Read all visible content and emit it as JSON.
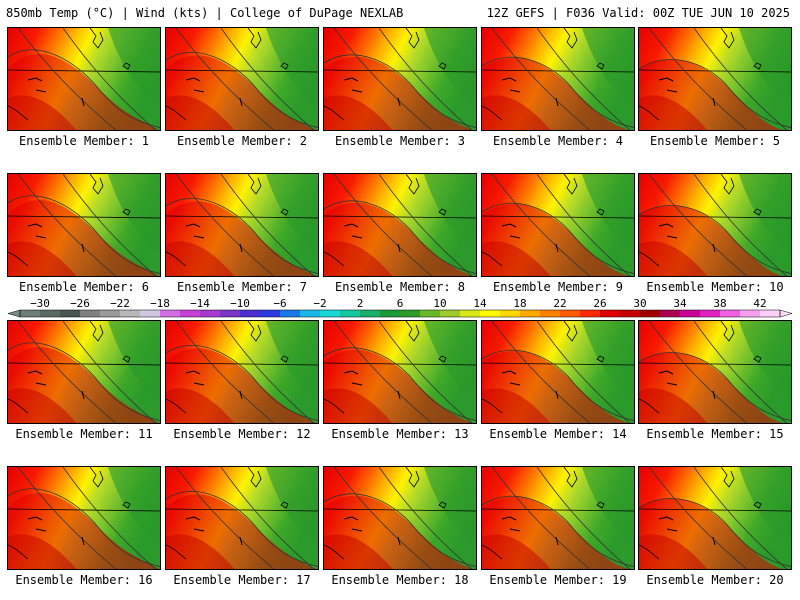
{
  "header": {
    "left": "850mb Temp (°C) | Wind (kts) | College of DuPage NEXLAB",
    "right": "12Z GEFS | F036 Valid: 00Z TUE JUN 10 2025"
  },
  "panels": [
    {
      "label": "Ensemble Member: 1"
    },
    {
      "label": "Ensemble Member: 2"
    },
    {
      "label": "Ensemble Member: 3"
    },
    {
      "label": "Ensemble Member: 4"
    },
    {
      "label": "Ensemble Member: 5"
    },
    {
      "label": "Ensemble Member: 6"
    },
    {
      "label": "Ensemble Member: 7"
    },
    {
      "label": "Ensemble Member: 8"
    },
    {
      "label": "Ensemble Member: 9"
    },
    {
      "label": "Ensemble Member: 10"
    },
    {
      "label": "Ensemble Member: 11"
    },
    {
      "label": "Ensemble Member: 12"
    },
    {
      "label": "Ensemble Member: 13"
    },
    {
      "label": "Ensemble Member: 14"
    },
    {
      "label": "Ensemble Member: 15"
    },
    {
      "label": "Ensemble Member: 16"
    },
    {
      "label": "Ensemble Member: 17"
    },
    {
      "label": "Ensemble Member: 18"
    },
    {
      "label": "Ensemble Member: 19"
    },
    {
      "label": "Ensemble Member: 20"
    }
  ],
  "colorbar": {
    "tick_labels": [
      "-30",
      "-26",
      "-22",
      "-18",
      "-14",
      "-10",
      "-6",
      "-2",
      "2",
      "6",
      "10",
      "14",
      "18",
      "22",
      "26",
      "30",
      "34",
      "38",
      "42"
    ],
    "colors": [
      "#6e7e76",
      "#5c6a64",
      "#4a5652",
      "#808080",
      "#9a9a9a",
      "#b8b8b8",
      "#cfc9e6",
      "#d26fe0",
      "#c640d6",
      "#a83ad0",
      "#7c34c8",
      "#4a2ed0",
      "#2a3ae0",
      "#1a78e8",
      "#19b6e8",
      "#18d8d8",
      "#16c8a0",
      "#18b06a",
      "#1a9a3a",
      "#2e9c2a",
      "#6ab82a",
      "#9ccc2a",
      "#d8e81a",
      "#fffa00",
      "#ffd800",
      "#ffaa00",
      "#ff8000",
      "#ff5a00",
      "#ff2a00",
      "#e00000",
      "#c40000",
      "#a00000",
      "#aa0050",
      "#c80096",
      "#e020c0",
      "#f060e0",
      "#f8a0f0",
      "#fcd0f8"
    ]
  }
}
